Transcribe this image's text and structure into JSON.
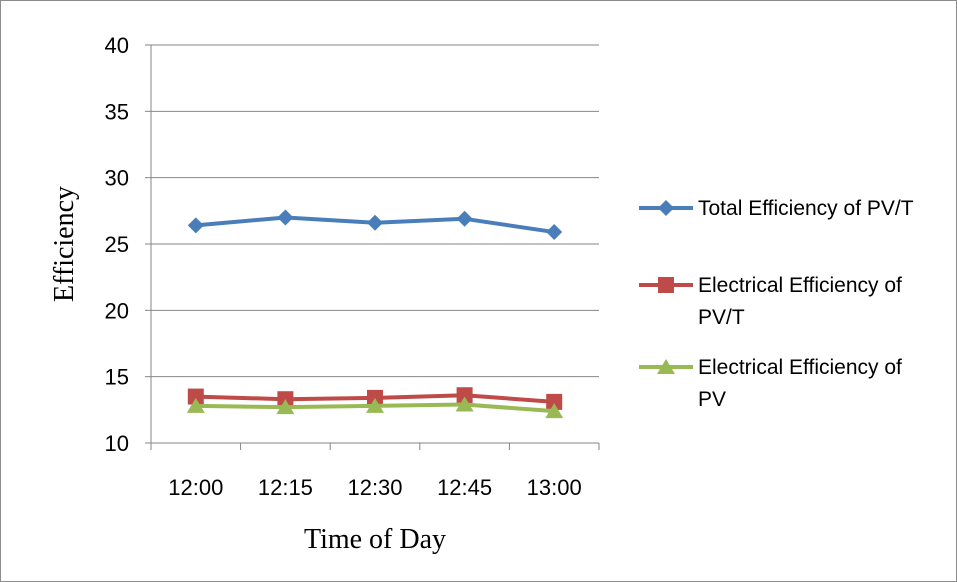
{
  "chart_data": {
    "type": "line",
    "title": "",
    "xlabel": "Time of Day",
    "ylabel": "Efficiency",
    "categories": [
      "12:00",
      "12:15",
      "12:30",
      "12:45",
      "13:00"
    ],
    "ylim": [
      10,
      40
    ],
    "yticks": [
      10,
      15,
      20,
      25,
      30,
      35,
      40
    ],
    "grid": true,
    "legend_position": "right",
    "series": [
      {
        "name": "Total Efficiency of PV/T",
        "legend_lines": [
          "Total Efficiency of PV/T"
        ],
        "values": [
          26.4,
          27.0,
          26.6,
          26.9,
          25.9
        ],
        "color": "#4a7ebb",
        "marker": "diamond"
      },
      {
        "name": "Electrical Efficiency of PV/T",
        "legend_lines": [
          "Electrical Efficiency of",
          "PV/T"
        ],
        "values": [
          13.5,
          13.3,
          13.4,
          13.6,
          13.1
        ],
        "color": "#be4b48",
        "marker": "square"
      },
      {
        "name": "Electrical Efficiency of PV",
        "legend_lines": [
          "Electrical Efficiency of",
          "PV"
        ],
        "values": [
          12.8,
          12.7,
          12.8,
          12.9,
          12.4
        ],
        "color": "#98b954",
        "marker": "triangle"
      }
    ]
  }
}
